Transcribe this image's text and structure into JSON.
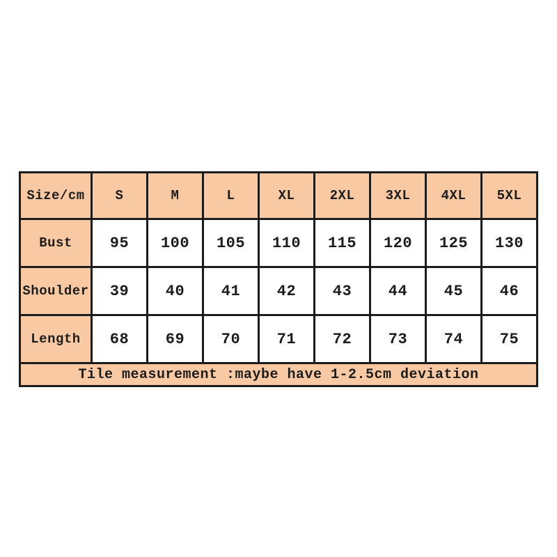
{
  "colors": {
    "header_bg": "#f8c9a3",
    "cell_bg": "#ffffff",
    "border": "#1c1c1c",
    "text": "#1c1c1c"
  },
  "chart_data": {
    "type": "table",
    "title": "",
    "columns": [
      "Size/cm",
      "S",
      "M",
      "L",
      "XL",
      "2XL",
      "3XL",
      "4XL",
      "5XL"
    ],
    "rows": [
      {
        "label": "Bust",
        "values": [
          "95",
          "100",
          "105",
          "110",
          "115",
          "120",
          "125",
          "130"
        ]
      },
      {
        "label": "Shoulder",
        "values": [
          "39",
          "40",
          "41",
          "42",
          "43",
          "44",
          "45",
          "46"
        ]
      },
      {
        "label": "Length",
        "values": [
          "68",
          "69",
          "70",
          "71",
          "72",
          "73",
          "74",
          "75"
        ]
      }
    ],
    "footnote": "Tile measurement :maybe have 1-2.5cm deviation"
  }
}
